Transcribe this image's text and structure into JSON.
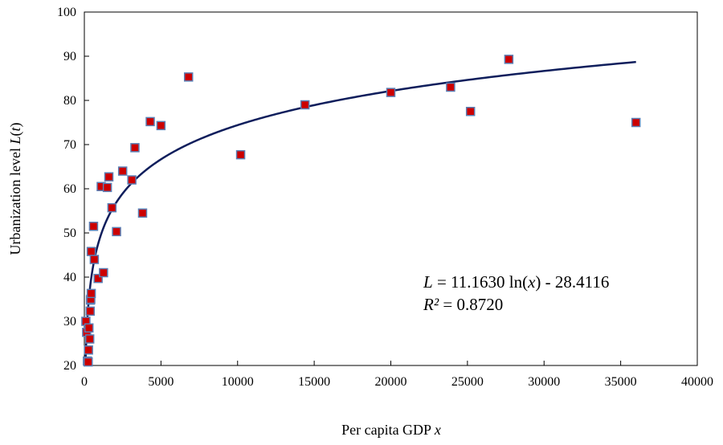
{
  "chart_data": {
    "type": "scatter",
    "title": "",
    "xlabel": {
      "text": "Per capita GDP ",
      "var": "x"
    },
    "ylabel": {
      "text": "Urbanization level ",
      "var": "L",
      "arg": "t"
    },
    "xlim": [
      0,
      40000
    ],
    "ylim": [
      20,
      100
    ],
    "xticks": [
      0,
      5000,
      10000,
      15000,
      20000,
      25000,
      30000,
      35000,
      40000
    ],
    "yticks": [
      20,
      30,
      40,
      50,
      60,
      70,
      80,
      90,
      100
    ],
    "grid": false,
    "legend": "none",
    "marker_color": "#cc0000",
    "marker_edge_color": "#5b7fb5",
    "trend_color": "#0f1e5c",
    "series": [
      {
        "points": [
          [
            100,
            30.0
          ],
          [
            150,
            27.5
          ],
          [
            200,
            21.0
          ],
          [
            250,
            20.8
          ],
          [
            270,
            23.5
          ],
          [
            300,
            28.5
          ],
          [
            350,
            26.0
          ],
          [
            380,
            32.3
          ],
          [
            400,
            34.8
          ],
          [
            420,
            35.0
          ],
          [
            450,
            36.3
          ],
          [
            450,
            45.8
          ],
          [
            600,
            51.5
          ],
          [
            650,
            44.0
          ],
          [
            900,
            39.7
          ],
          [
            1100,
            60.5
          ],
          [
            1250,
            41.0
          ],
          [
            1500,
            60.3
          ],
          [
            1600,
            62.7
          ],
          [
            1800,
            55.7
          ],
          [
            2100,
            50.3
          ],
          [
            2500,
            64.0
          ],
          [
            3100,
            62.0
          ],
          [
            3300,
            69.3
          ],
          [
            3800,
            54.5
          ],
          [
            4300,
            75.2
          ],
          [
            5000,
            74.3
          ],
          [
            6800,
            85.3
          ],
          [
            10200,
            67.7
          ],
          [
            14400,
            79.0
          ],
          [
            20000,
            81.8
          ],
          [
            23900,
            83.0
          ],
          [
            25200,
            77.5
          ],
          [
            27700,
            89.3
          ],
          [
            36000,
            75.0
          ]
        ]
      }
    ],
    "trendline": {
      "type": "logarithmic",
      "a": 11.163,
      "b": -28.4116,
      "x_range": [
        80,
        36000
      ]
    },
    "annotations": {
      "equation": {
        "lhs": "L",
        "eq": " = 11.1630 ln(",
        "var": "x",
        "rest": ") - 28.4116"
      },
      "r2": {
        "lhs": "R²",
        "rest": " = 0.8720"
      }
    }
  }
}
